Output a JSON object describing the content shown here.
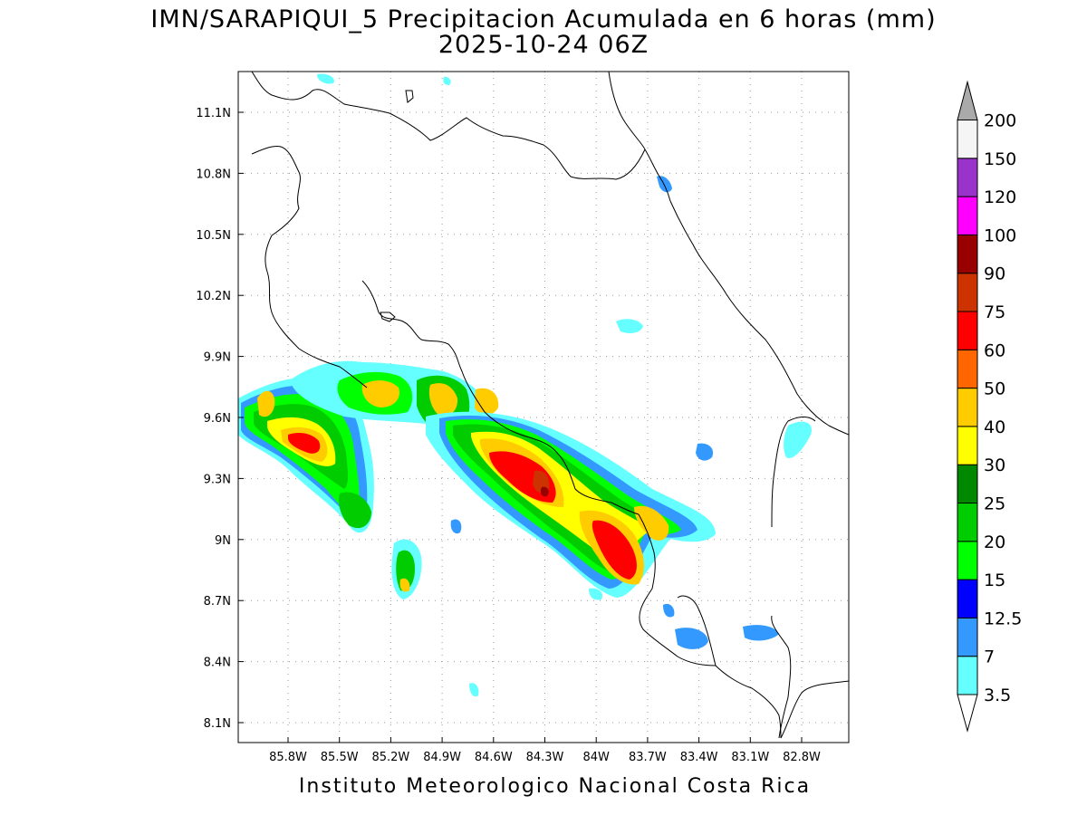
{
  "title_line1": "IMN/SARAPIQUI_5 Precipitacion Acumulada en 6 horas (mm)",
  "title_line2": "2025-10-24 06Z",
  "footer": "Instituto Meteorologico Nacional Costa Rica",
  "map": {
    "lon_ticks": [
      "85.8W",
      "85.5W",
      "85.2W",
      "84.9W",
      "84.6W",
      "84.3W",
      "84W",
      "83.7W",
      "83.4W",
      "83.1W",
      "82.8W"
    ],
    "lat_ticks": [
      "11.1N",
      "10.8N",
      "10.5N",
      "10.2N",
      "9.9N",
      "9.6N",
      "9.3N",
      "9N",
      "8.7N",
      "8.4N",
      "8.1N"
    ]
  },
  "colorbar": {
    "labels": [
      "3.5",
      "7",
      "12.5",
      "15",
      "20",
      "25",
      "30",
      "40",
      "50",
      "60",
      "75",
      "90",
      "100",
      "120",
      "150",
      "200"
    ],
    "colors": [
      "#66ffff",
      "#3399ff",
      "#0000ff",
      "#00ff00",
      "#00cc00",
      "#008800",
      "#ffff00",
      "#ffcc00",
      "#ff6600",
      "#ff0000",
      "#cc3300",
      "#990000",
      "#ff00ff",
      "#9933cc",
      "#f5f5f5"
    ],
    "under_color": "#ffffff",
    "over_color": "#aaaaaa"
  }
}
